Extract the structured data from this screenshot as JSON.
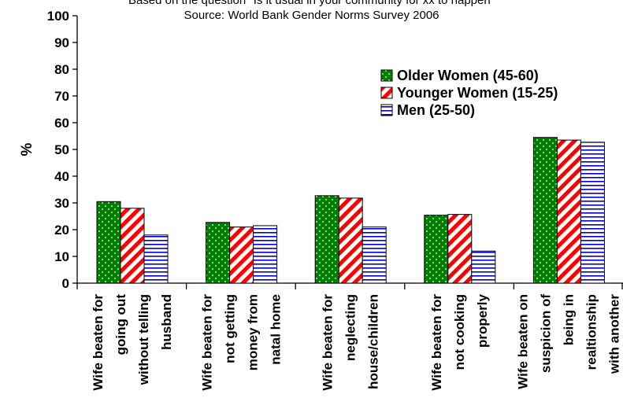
{
  "chart_data": {
    "type": "bar",
    "title_lines": [
      "Based on the question \"Is it usual in your community for xx to happen\"",
      "Source:  World Bank Gender Norms Survey 2006"
    ],
    "ylabel": "%",
    "xlabel": "",
    "ylim": [
      0,
      100
    ],
    "yticks": [
      0,
      10,
      20,
      30,
      40,
      50,
      60,
      70,
      80,
      90,
      100
    ],
    "grid": false,
    "legend_position": "top-right",
    "categories": [
      [
        "Wife beaten for",
        "going out",
        "without telling",
        "husband"
      ],
      [
        "Wife beaten for",
        "not getting",
        "money from",
        "natal home"
      ],
      [
        "Wife beaten for",
        "neglecting",
        "house/children"
      ],
      [
        "Wife beaten for",
        "not cooking",
        "properly"
      ],
      [
        "Wife beaten on",
        "suspicion of",
        "being in",
        "realtionship",
        "with another"
      ]
    ],
    "series": [
      {
        "name": "Older Women (45-60)",
        "values": [
          30.5,
          22.7,
          32.7,
          25.4,
          54.5
        ],
        "color": "#008000",
        "pattern": "dots"
      },
      {
        "name": "Younger Women (15-25)",
        "values": [
          28.0,
          21.0,
          31.8,
          25.7,
          53.5
        ],
        "color": "#ff0000",
        "pattern": "diagonal-stripes"
      },
      {
        "name": "Men (25-50)",
        "values": [
          18.0,
          21.5,
          21.0,
          12.0,
          52.7
        ],
        "color": "#0000cc",
        "pattern": "horizontal-stripes"
      }
    ]
  }
}
